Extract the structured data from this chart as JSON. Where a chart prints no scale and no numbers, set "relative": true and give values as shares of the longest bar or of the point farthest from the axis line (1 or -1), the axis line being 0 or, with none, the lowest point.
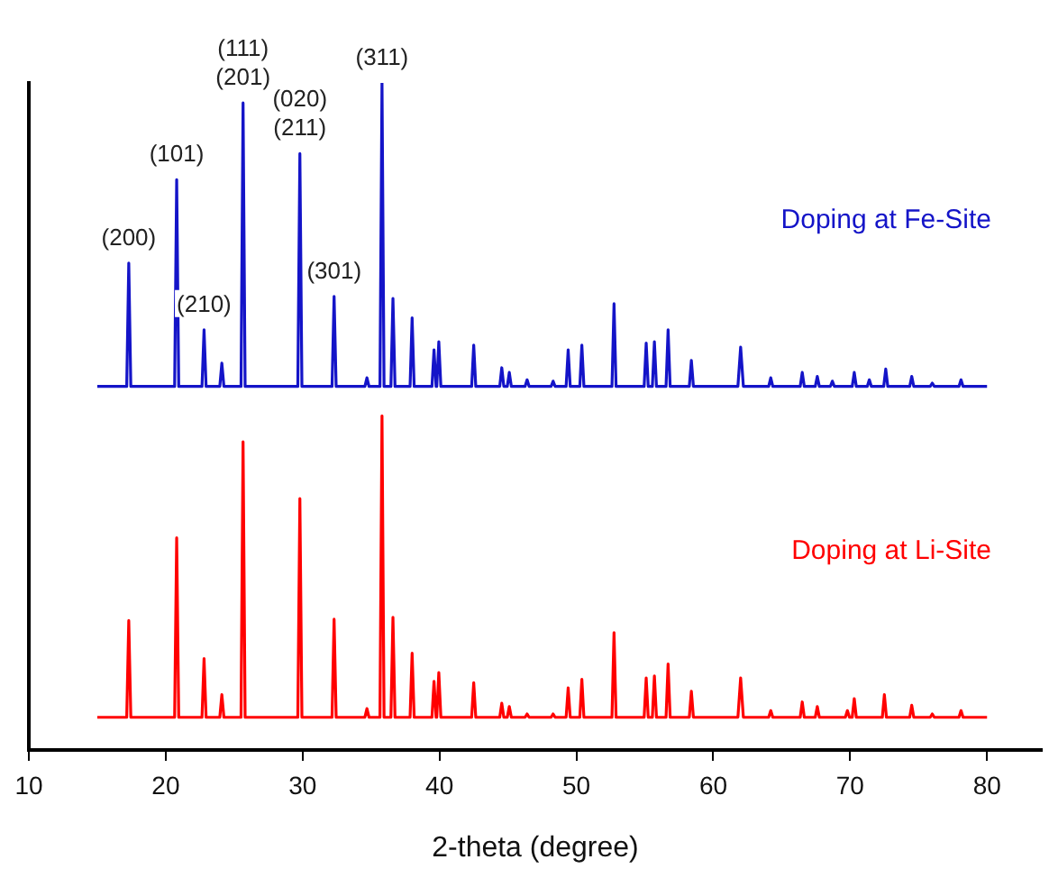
{
  "chart_data": {
    "type": "line",
    "xlabel": "2-theta (degree)",
    "xlim": [
      10,
      84
    ],
    "xticks": [
      10,
      20,
      30,
      40,
      50,
      60,
      70,
      80
    ],
    "relative": true,
    "grid": false,
    "legend": false,
    "marker": "none",
    "line_style": "solid",
    "series": [
      {
        "name": "Doping at Fe-Site",
        "color": "#1414c8",
        "x": [
          15,
          17.15,
          17.3,
          17.45,
          20.65,
          20.8,
          20.95,
          22.65,
          22.8,
          22.95,
          23.95,
          24.1,
          24.25,
          25.5,
          25.65,
          25.8,
          29.65,
          29.8,
          29.95,
          32.15,
          32.3,
          32.45,
          34.55,
          34.7,
          34.85,
          35.65,
          35.8,
          35.95,
          36.45,
          36.6,
          36.75,
          37.85,
          38,
          38.15,
          39.45,
          39.6,
          39.75,
          39.8,
          39.95,
          40.1,
          42.35,
          42.5,
          42.65,
          44.4,
          44.55,
          44.7,
          44.95,
          45.1,
          45.25,
          46.25,
          46.4,
          46.55,
          48.15,
          48.3,
          48.45,
          49.25,
          49.4,
          49.55,
          50.25,
          50.4,
          50.55,
          52.6,
          52.75,
          52.9,
          54.95,
          55.1,
          55.25,
          55.55,
          55.7,
          55.85,
          56.55,
          56.7,
          56.85,
          58.25,
          58.4,
          58.55,
          61.8,
          62,
          62.2,
          64.05,
          64.2,
          64.35,
          66.35,
          66.5,
          66.65,
          67.45,
          67.6,
          67.75,
          68.55,
          68.7,
          68.85,
          70.15,
          70.3,
          70.45,
          71.25,
          71.4,
          71.55,
          72.45,
          72.6,
          72.75,
          74.35,
          74.5,
          74.65,
          75.85,
          76,
          76.15,
          77.95,
          78.1,
          78.25,
          80
        ],
        "values": [
          0.545,
          0.545,
          0.73,
          0.545,
          0.545,
          0.855,
          0.545,
          0.545,
          0.63,
          0.545,
          0.545,
          0.58,
          0.545,
          0.545,
          0.97,
          0.545,
          0.545,
          0.894,
          0.545,
          0.545,
          0.68,
          0.545,
          0.545,
          0.558,
          0.545,
          0.545,
          1,
          0.545,
          0.545,
          0.677,
          0.545,
          0.545,
          0.648,
          0.545,
          0.545,
          0.6,
          0.545,
          0.545,
          0.612,
          0.545,
          0.545,
          0.607,
          0.545,
          0.545,
          0.573,
          0.545,
          0.545,
          0.566,
          0.545,
          0.545,
          0.555,
          0.545,
          0.545,
          0.553,
          0.545,
          0.545,
          0.6,
          0.545,
          0.545,
          0.607,
          0.545,
          0.545,
          0.669,
          0.545,
          0.545,
          0.61,
          0.545,
          0.545,
          0.612,
          0.545,
          0.545,
          0.63,
          0.545,
          0.545,
          0.584,
          0.545,
          0.545,
          0.604,
          0.545,
          0.545,
          0.558,
          0.545,
          0.545,
          0.566,
          0.545,
          0.545,
          0.56,
          0.545,
          0.545,
          0.553,
          0.545,
          0.545,
          0.566,
          0.545,
          0.545,
          0.555,
          0.545,
          0.545,
          0.571,
          0.545,
          0.545,
          0.56,
          0.545,
          0.545,
          0.55,
          0.545,
          0.545,
          0.555,
          0.545,
          0.545
        ]
      },
      {
        "name": "Doping at Li-Site",
        "color": "#ff0000",
        "x": [
          15,
          17.15,
          17.3,
          17.45,
          20.65,
          20.8,
          20.95,
          22.65,
          22.8,
          22.95,
          23.95,
          24.1,
          24.25,
          25.5,
          25.65,
          25.8,
          29.65,
          29.8,
          29.95,
          32.15,
          32.3,
          32.45,
          34.55,
          34.7,
          34.85,
          35.65,
          35.8,
          35.95,
          36.45,
          36.6,
          36.75,
          37.85,
          38,
          38.15,
          39.45,
          39.6,
          39.75,
          39.8,
          39.95,
          40.1,
          42.35,
          42.5,
          42.65,
          44.4,
          44.55,
          44.7,
          44.95,
          45.1,
          45.25,
          46.25,
          46.4,
          46.55,
          48.15,
          48.3,
          48.45,
          49.25,
          49.4,
          49.55,
          50.25,
          50.4,
          50.55,
          52.6,
          52.75,
          52.9,
          54.95,
          55.1,
          55.25,
          55.55,
          55.7,
          55.85,
          56.55,
          56.7,
          56.85,
          58.25,
          58.4,
          58.55,
          61.8,
          62,
          62.2,
          64.05,
          64.2,
          64.35,
          66.35,
          66.5,
          66.65,
          67.45,
          67.6,
          67.75,
          69.65,
          69.8,
          69.95,
          70.15,
          70.3,
          70.45,
          72.35,
          72.5,
          72.65,
          74.35,
          74.5,
          74.65,
          75.85,
          76,
          76.15,
          77.95,
          78.1,
          78.25,
          80
        ],
        "values": [
          0.049,
          0.049,
          0.194,
          0.049,
          0.049,
          0.318,
          0.049,
          0.049,
          0.137,
          0.049,
          0.049,
          0.083,
          0.049,
          0.049,
          0.462,
          0.049,
          0.049,
          0.377,
          0.049,
          0.049,
          0.196,
          0.049,
          0.049,
          0.062,
          0.049,
          0.049,
          0.501,
          0.049,
          0.049,
          0.199,
          0.049,
          0.049,
          0.145,
          0.049,
          0.049,
          0.103,
          0.049,
          0.049,
          0.116,
          0.049,
          0.049,
          0.101,
          0.049,
          0.049,
          0.07,
          0.049,
          0.049,
          0.065,
          0.049,
          0.049,
          0.054,
          0.049,
          0.049,
          0.054,
          0.049,
          0.049,
          0.093,
          0.049,
          0.049,
          0.106,
          0.049,
          0.049,
          0.176,
          0.049,
          0.049,
          0.108,
          0.049,
          0.049,
          0.111,
          0.049,
          0.049,
          0.129,
          0.049,
          0.049,
          0.088,
          0.049,
          0.049,
          0.108,
          0.049,
          0.049,
          0.059,
          0.049,
          0.049,
          0.072,
          0.049,
          0.049,
          0.065,
          0.049,
          0.049,
          0.059,
          0.049,
          0.049,
          0.077,
          0.049,
          0.049,
          0.083,
          0.049,
          0.049,
          0.067,
          0.049,
          0.049,
          0.054,
          0.049,
          0.049,
          0.059,
          0.049,
          0.049
        ]
      }
    ],
    "annotations": [
      {
        "text": "(200)",
        "x": 17.3,
        "y": 0.73
      },
      {
        "text": "(101)",
        "x": 20.8,
        "y": 0.855
      },
      {
        "text": "(210)",
        "x": 22.8,
        "y": 0.63
      },
      {
        "text": "(111)\n(201)",
        "x": 25.65,
        "y": 0.97
      },
      {
        "text": "(020)\n(211)",
        "x": 29.8,
        "y": 0.894
      },
      {
        "text": "(301)",
        "x": 32.3,
        "y": 0.68
      },
      {
        "text": "(311)",
        "x": 35.8,
        "y": 1
      }
    ]
  }
}
